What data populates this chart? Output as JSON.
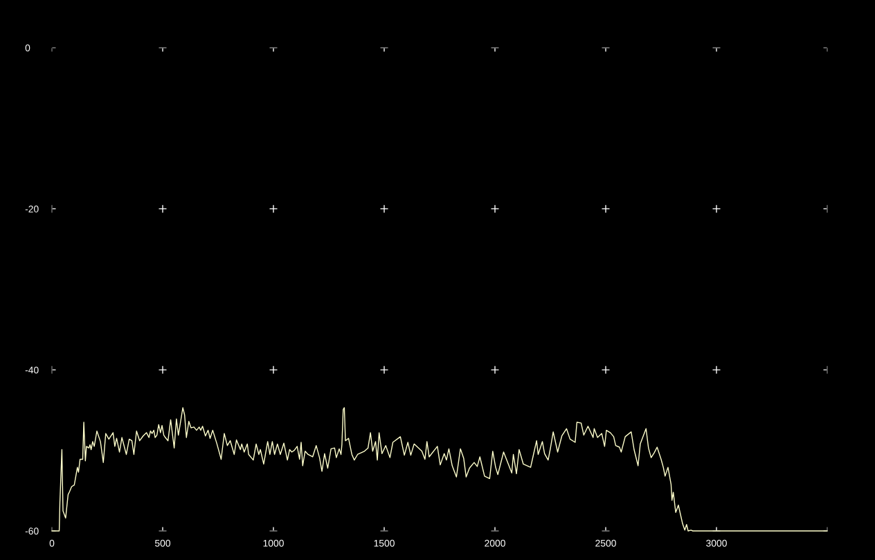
{
  "chart_data": {
    "type": "line",
    "xlim": [
      0,
      3500
    ],
    "ylim": [
      -60,
      0
    ],
    "xticks": [
      0,
      500,
      1000,
      1500,
      2000,
      2500,
      3000,
      {
        "value": 3500,
        "label": null
      }
    ],
    "yticks": [
      0,
      -20,
      -40,
      -60
    ],
    "grid": true,
    "series": [
      {
        "color": "#ffffcc",
        "x": [
          0,
          33,
          36,
          45,
          50,
          62,
          73,
          80,
          89,
          101,
          115,
          120,
          127,
          139,
          144,
          151,
          156,
          167,
          172,
          177,
          184,
          191,
          203,
          219,
          232,
          243,
          257,
          276,
          284,
          292,
          305,
          316,
          336,
          349,
          361,
          370,
          382,
          396,
          412,
          427,
          438,
          445,
          452,
          460,
          466,
          474,
          482,
          490,
          497,
          505,
          512,
          524,
          536,
          552,
          562,
          571,
          578,
          591,
          599,
          607,
          618,
          628,
          641,
          653,
          665,
          672,
          680,
          693,
          705,
          714,
          726,
          745,
          764,
          778,
          792,
          805,
          823,
          833,
          851,
          857,
          868,
          882,
          888,
          909,
          922,
          934,
          941,
          956,
          974,
          984,
          995,
          1005,
          1018,
          1031,
          1047,
          1063,
          1073,
          1083,
          1094,
          1107,
          1118,
          1125,
          1132,
          1143,
          1156,
          1177,
          1193,
          1208,
          1219,
          1231,
          1245,
          1260,
          1276,
          1284,
          1297,
          1305,
          1309,
          1315,
          1320,
          1325,
          1339,
          1354,
          1365,
          1380,
          1411,
          1427,
          1438,
          1448,
          1461,
          1469,
          1477,
          1490,
          1507,
          1526,
          1539,
          1573,
          1591,
          1607,
          1620,
          1635,
          1670,
          1684,
          1693,
          1703,
          1740,
          1753,
          1771,
          1781,
          1792,
          1807,
          1826,
          1844,
          1859,
          1870,
          1885,
          1906,
          1920,
          1932,
          1953,
          1976,
          1990,
          2003,
          2013,
          2039,
          2076,
          2083,
          2097,
          2109,
          2128,
          2161,
          2174,
          2188,
          2195,
          2214,
          2224,
          2240,
          2250,
          2263,
          2283,
          2302,
          2323,
          2339,
          2362,
          2370,
          2389,
          2401,
          2420,
          2443,
          2448,
          2463,
          2482,
          2495,
          2503,
          2521,
          2536,
          2545,
          2562,
          2570,
          2588,
          2615,
          2628,
          2646,
          2656,
          2682,
          2693,
          2705,
          2719,
          2732,
          2750,
          2760,
          2768,
          2781,
          2795,
          2799,
          2805,
          2816,
          2828,
          2847,
          2857,
          2865,
          2872,
          2885,
          2893,
          3500
        ],
        "values": [
          -60,
          -60,
          -56.5,
          -49.9,
          -57.5,
          -58.4,
          -55.5,
          -55.1,
          -54.5,
          -54.3,
          -52.1,
          -52.7,
          -51.1,
          -51.1,
          -46.5,
          -51.3,
          -49.5,
          -49.7,
          -49.3,
          -49.9,
          -48.9,
          -49.5,
          -47.6,
          -48.9,
          -51.5,
          -47.9,
          -48.6,
          -47.8,
          -49.5,
          -48.5,
          -50.2,
          -48.4,
          -50.5,
          -48.6,
          -48.8,
          -50.5,
          -47.6,
          -48.8,
          -48.2,
          -47.8,
          -48.4,
          -47.6,
          -47.9,
          -47.5,
          -48.4,
          -48.1,
          -46.8,
          -47.8,
          -46.9,
          -48.1,
          -48.4,
          -48.8,
          -46.2,
          -49.7,
          -46.1,
          -48.1,
          -46.9,
          -44.7,
          -45.6,
          -48.4,
          -46.4,
          -47.2,
          -47.1,
          -47.5,
          -47.1,
          -47.5,
          -47.0,
          -48.2,
          -47.5,
          -48.5,
          -47.5,
          -49.2,
          -51.1,
          -47.9,
          -49.4,
          -48.8,
          -50.5,
          -48.7,
          -49.9,
          -49.2,
          -50.2,
          -49.2,
          -50.5,
          -51.2,
          -49.2,
          -50.5,
          -49.9,
          -51.7,
          -48.9,
          -50.5,
          -48.9,
          -50.5,
          -49.2,
          -50.5,
          -49.1,
          -51.2,
          -49.9,
          -50.2,
          -50.0,
          -49.5,
          -51.1,
          -49.0,
          -51.9,
          -50.1,
          -50.5,
          -50.8,
          -49.4,
          -50.9,
          -52.6,
          -50.4,
          -52.2,
          -49.8,
          -49.7,
          -50.9,
          -49.8,
          -50.5,
          -49.3,
          -44.9,
          -44.7,
          -48.8,
          -48.5,
          -50.5,
          -51.2,
          -50.5,
          -50.1,
          -49.7,
          -47.8,
          -50.1,
          -48.9,
          -51.2,
          -47.8,
          -50.4,
          -49.4,
          -50.9,
          -49.0,
          -48.3,
          -50.6,
          -49.0,
          -50.6,
          -49.2,
          -50.1,
          -51.1,
          -48.9,
          -50.8,
          -49.5,
          -51.8,
          -50.4,
          -51.2,
          -49.8,
          -51.9,
          -53.3,
          -49.8,
          -51.0,
          -53.3,
          -52.2,
          -51.5,
          -52.0,
          -50.8,
          -53.2,
          -53.5,
          -50.1,
          -52.1,
          -53.0,
          -50.2,
          -52.8,
          -50.5,
          -52.9,
          -49.9,
          -51.7,
          -52.1,
          -50.5,
          -48.8,
          -50.5,
          -48.9,
          -50.4,
          -51.2,
          -49.8,
          -47.7,
          -50.2,
          -48.2,
          -47.3,
          -48.6,
          -49.0,
          -46.5,
          -46.6,
          -48.1,
          -47.0,
          -48.4,
          -47.3,
          -48.4,
          -47.9,
          -49.5,
          -47.5,
          -47.8,
          -48.3,
          -49.4,
          -49.6,
          -50.2,
          -48.3,
          -47.7,
          -49.9,
          -51.9,
          -49.2,
          -47.3,
          -49.7,
          -50.9,
          -50.3,
          -49.6,
          -51.1,
          -52.1,
          -53.2,
          -52.1,
          -54.2,
          -56.2,
          -55.2,
          -57.7,
          -56.8,
          -59.1,
          -59.9,
          -59.2,
          -60,
          -59.9,
          -60,
          -60
        ]
      }
    ]
  }
}
